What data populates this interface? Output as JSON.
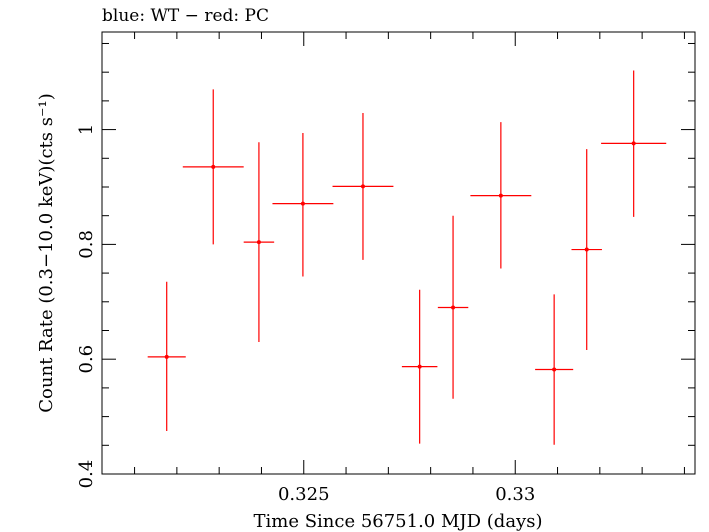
{
  "chart_data": {
    "type": "scatter",
    "title": "blue: WT − red: PC",
    "xlabel": "Time Since 56751.0 MJD (days)",
    "ylabel": "Count Rate (0.3−10.0 keV)(cts s⁻¹)",
    "xlim": [
      0.32023,
      0.33425
    ],
    "ylim": [
      0.4,
      1.17
    ],
    "xticks": [
      {
        "value": 0.325,
        "label": "0.325"
      },
      {
        "value": 0.33,
        "label": "0.33"
      }
    ],
    "yticks": [
      {
        "value": 0.4,
        "label": "0.4"
      },
      {
        "value": 0.6,
        "label": "0.6"
      },
      {
        "value": 0.8,
        "label": "0.8"
      },
      {
        "value": 1.0,
        "label": "1"
      }
    ],
    "x_minor_step": 0.001,
    "y_minor_step": 0.05,
    "grid": false,
    "color": "#ff0000",
    "series": [
      {
        "points": [
          {
            "x": 0.32176,
            "y": 0.604,
            "xerr": 0.00045,
            "yerr_lo": 0.129,
            "yerr_hi": 0.131
          },
          {
            "x": 0.32286,
            "y": 0.935,
            "xerr": 0.00072,
            "yerr_lo": 0.135,
            "yerr_hi": 0.135
          },
          {
            "x": 0.32394,
            "y": 0.804,
            "xerr": 0.00036,
            "yerr_lo": 0.174,
            "yerr_hi": 0.174
          },
          {
            "x": 0.32498,
            "y": 0.871,
            "xerr": 0.00072,
            "yerr_lo": 0.127,
            "yerr_hi": 0.123
          },
          {
            "x": 0.3264,
            "y": 0.901,
            "xerr": 0.00072,
            "yerr_lo": 0.128,
            "yerr_hi": 0.128
          },
          {
            "x": 0.32774,
            "y": 0.587,
            "xerr": 0.00042,
            "yerr_lo": 0.134,
            "yerr_hi": 0.134
          },
          {
            "x": 0.32853,
            "y": 0.69,
            "xerr": 0.00036,
            "yerr_lo": 0.159,
            "yerr_hi": 0.16
          },
          {
            "x": 0.32966,
            "y": 0.885,
            "xerr": 0.00072,
            "yerr_lo": 0.127,
            "yerr_hi": 0.128
          },
          {
            "x": 0.33092,
            "y": 0.582,
            "xerr": 0.00045,
            "yerr_lo": 0.131,
            "yerr_hi": 0.131
          },
          {
            "x": 0.33169,
            "y": 0.791,
            "xerr": 0.00036,
            "yerr_lo": 0.175,
            "yerr_hi": 0.175
          },
          {
            "x": 0.3328,
            "y": 0.976,
            "xerr": 0.00077,
            "yerr_lo": 0.128,
            "yerr_hi": 0.127
          }
        ]
      }
    ]
  }
}
